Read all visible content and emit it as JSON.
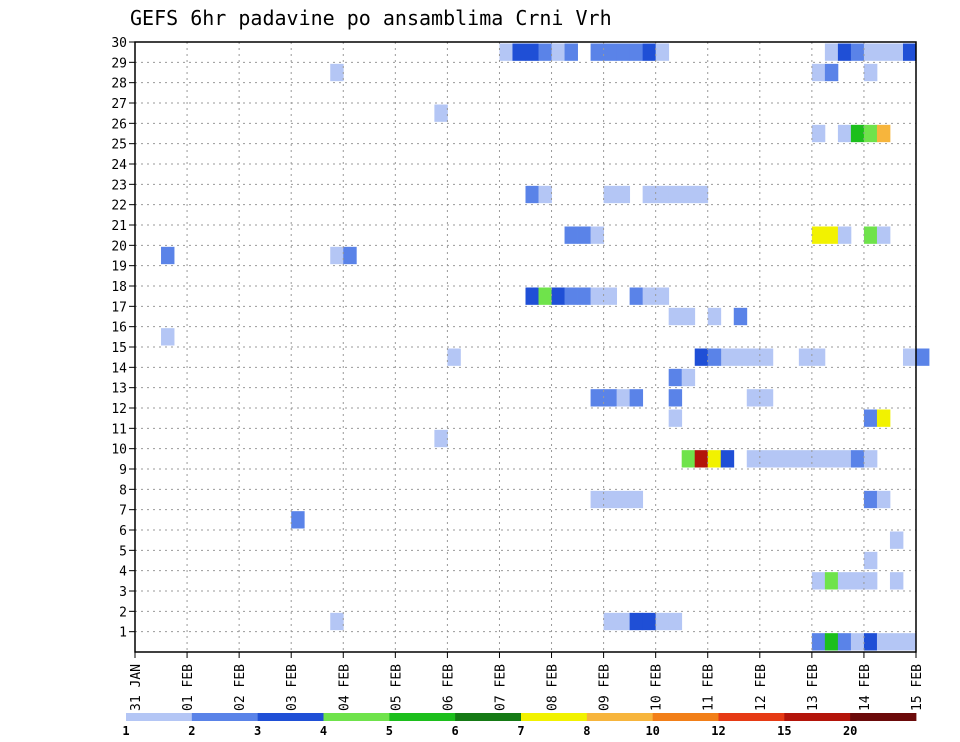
{
  "chart_data": {
    "type": "heatmap",
    "title": "GEFS 6hr padavine po ansamblima Crni Vrh",
    "xlabel": "",
    "ylabel": "",
    "x_tick_labels": [
      "31 JAN",
      "01 FEB",
      "02 FEB",
      "03 FEB",
      "04 FEB",
      "05 FEB",
      "06 FEB",
      "07 FEB",
      "08 FEB",
      "09 FEB",
      "10 FEB",
      "11 FEB",
      "12 FEB",
      "13 FEB",
      "14 FEB",
      "15 FEB"
    ],
    "y_tick_labels": [
      "1",
      "2",
      "3",
      "4",
      "5",
      "6",
      "7",
      "8",
      "9",
      "10",
      "11",
      "12",
      "13",
      "14",
      "15",
      "16",
      "17",
      "18",
      "19",
      "20",
      "21",
      "22",
      "23",
      "24",
      "25",
      "26",
      "27",
      "28",
      "29",
      "30"
    ],
    "x_unit": "6-hour step since 31 JAN 00 UTC",
    "xlim": [
      0,
      60
    ],
    "ylim": [
      0,
      30
    ],
    "grid": true,
    "colorbar": {
      "labels": [
        "1",
        "2",
        "3",
        "4",
        "5",
        "6",
        "7",
        "8",
        "10",
        "12",
        "15",
        "20"
      ],
      "colors": [
        "#b4c6f5",
        "#5a83e8",
        "#1f4fd6",
        "#6fe34b",
        "#1cbf1c",
        "#157a15",
        "#f2f200",
        "#f7b53c",
        "#f27f18",
        "#e63a14",
        "#b3140a",
        "#6b0a0a"
      ]
    },
    "cells": [
      [
        28,
        29,
        1
      ],
      [
        29,
        29,
        3
      ],
      [
        30,
        29,
        3
      ],
      [
        31,
        29,
        2
      ],
      [
        32,
        29,
        1
      ],
      [
        33,
        29,
        2
      ],
      [
        35,
        29,
        2
      ],
      [
        36,
        29,
        2
      ],
      [
        37,
        29,
        2
      ],
      [
        38,
        29,
        2
      ],
      [
        39,
        29,
        3
      ],
      [
        40,
        29,
        1
      ],
      [
        53,
        29,
        1
      ],
      [
        54,
        29,
        3
      ],
      [
        55,
        29,
        2
      ],
      [
        56,
        29,
        1
      ],
      [
        57,
        29,
        1
      ],
      [
        58,
        29,
        1
      ],
      [
        59,
        29,
        3
      ],
      [
        15,
        28,
        1
      ],
      [
        52,
        28,
        1
      ],
      [
        53,
        28,
        2
      ],
      [
        56,
        28,
        1
      ],
      [
        47,
        12,
        1
      ],
      [
        48,
        12,
        1
      ],
      [
        23,
        26,
        1
      ],
      [
        52,
        25,
        1
      ],
      [
        54,
        25,
        1
      ],
      [
        55,
        25,
        5
      ],
      [
        56,
        25,
        4
      ],
      [
        57,
        25,
        8
      ],
      [
        36,
        22,
        1
      ],
      [
        37,
        22,
        1
      ],
      [
        39,
        22,
        1
      ],
      [
        40,
        22,
        1
      ],
      [
        41,
        22,
        1
      ],
      [
        42,
        22,
        1
      ],
      [
        43,
        22,
        1
      ],
      [
        30,
        22,
        2
      ],
      [
        31,
        22,
        1
      ],
      [
        33,
        20,
        2
      ],
      [
        34,
        20,
        2
      ],
      [
        35,
        20,
        1
      ],
      [
        52,
        20,
        7
      ],
      [
        53,
        20,
        7
      ],
      [
        54,
        20,
        1
      ],
      [
        56,
        20,
        4
      ],
      [
        57,
        20,
        1
      ],
      [
        2,
        19,
        2
      ],
      [
        15,
        19,
        1
      ],
      [
        16,
        19,
        2
      ],
      [
        30,
        17,
        3
      ],
      [
        31,
        17,
        4
      ],
      [
        32,
        17,
        3
      ],
      [
        33,
        17,
        2
      ],
      [
        34,
        17,
        2
      ],
      [
        35,
        17,
        1
      ],
      [
        36,
        17,
        1
      ],
      [
        38,
        17,
        2
      ],
      [
        39,
        17,
        1
      ],
      [
        40,
        17,
        1
      ],
      [
        41,
        16,
        1
      ],
      [
        42,
        16,
        1
      ],
      [
        44,
        16,
        1
      ],
      [
        46,
        16,
        2
      ],
      [
        2,
        15,
        1
      ],
      [
        24,
        14,
        1
      ],
      [
        45,
        14,
        1
      ],
      [
        46,
        14,
        1
      ],
      [
        47,
        14,
        1
      ],
      [
        48,
        14,
        1
      ],
      [
        43,
        14,
        3
      ],
      [
        44,
        14,
        2
      ],
      [
        51,
        14,
        1
      ],
      [
        52,
        14,
        1
      ],
      [
        59,
        14,
        1
      ],
      [
        60,
        14,
        2
      ],
      [
        41,
        13,
        2
      ],
      [
        41,
        12,
        2
      ],
      [
        42,
        13,
        1
      ],
      [
        35,
        12,
        2
      ],
      [
        36,
        12,
        2
      ],
      [
        37,
        12,
        1
      ],
      [
        38,
        12,
        2
      ],
      [
        41,
        11,
        1
      ],
      [
        56,
        11,
        2
      ],
      [
        57,
        11,
        7
      ],
      [
        23,
        10,
        1
      ],
      [
        42,
        9,
        4
      ],
      [
        43,
        9,
        11
      ],
      [
        44,
        9,
        7
      ],
      [
        45,
        9,
        3
      ],
      [
        47,
        9,
        1
      ],
      [
        48,
        9,
        1
      ],
      [
        49,
        9,
        1
      ],
      [
        50,
        9,
        1
      ],
      [
        51,
        9,
        1
      ],
      [
        52,
        9,
        1
      ],
      [
        53,
        9,
        1
      ],
      [
        54,
        9,
        1
      ],
      [
        55,
        9,
        2
      ],
      [
        56,
        9,
        1
      ],
      [
        35,
        7,
        1
      ],
      [
        36,
        7,
        1
      ],
      [
        37,
        7,
        1
      ],
      [
        38,
        7,
        1
      ],
      [
        56,
        7,
        2
      ],
      [
        57,
        7,
        1
      ],
      [
        12,
        6,
        2
      ],
      [
        58,
        5,
        1
      ],
      [
        56,
        4,
        1
      ],
      [
        52,
        3,
        1
      ],
      [
        53,
        3,
        4
      ],
      [
        54,
        3,
        1
      ],
      [
        55,
        3,
        1
      ],
      [
        56,
        3,
        1
      ],
      [
        58,
        3,
        1
      ],
      [
        15,
        1,
        1
      ],
      [
        36,
        1,
        1
      ],
      [
        37,
        1,
        1
      ],
      [
        38,
        1,
        3
      ],
      [
        39,
        1,
        3
      ],
      [
        40,
        1,
        1
      ],
      [
        41,
        1,
        1
      ],
      [
        52,
        0,
        2
      ],
      [
        53,
        0,
        5
      ],
      [
        54,
        0,
        2
      ],
      [
        55,
        0,
        1
      ],
      [
        56,
        0,
        3
      ],
      [
        57,
        0,
        1
      ],
      [
        58,
        0,
        1
      ],
      [
        59,
        0,
        1
      ]
    ]
  }
}
